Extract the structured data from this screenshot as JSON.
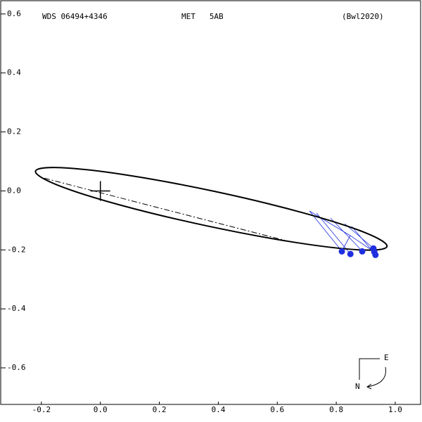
{
  "chart_data": {
    "type": "orbit",
    "title": "WDS 06494+4346",
    "subtitle": "MET   5AB",
    "reference": "(Bwl2020)",
    "compass_east": "E",
    "compass_north": "N",
    "xlim": [
      -0.338,
      1.086
    ],
    "ylim": [
      -0.724,
      0.645
    ],
    "xticks": [
      {
        "value": -0.2,
        "label": "-0.2"
      },
      {
        "value": 0,
        "label": "0.0"
      },
      0.2,
      0.4,
      0.6,
      0.8,
      {
        "value": 1,
        "label": "1.0"
      }
    ],
    "yticks": [
      {
        "value": 0.6,
        "label": "0.6"
      },
      {
        "value": 0.4,
        "label": "0.4"
      },
      {
        "value": 0.2,
        "label": "0.2"
      },
      {
        "value": 0,
        "label": "0.0"
      },
      {
        "value": -0.2,
        "label": "-0.2"
      },
      {
        "value": -0.4,
        "label": "-0.4"
      },
      {
        "value": -0.6,
        "label": "-0.6"
      }
    ],
    "orbit": {
      "color": "#000000",
      "x": [
        0.972,
        0.898,
        0.685,
        0.389,
        0.089,
        -0.134,
        -0.22,
        -0.146,
        0.067,
        0.363,
        0.663,
        0.886,
        0.972
      ],
      "y": [
        -0.188,
        -0.1415,
        -0.0736,
        -0.002,
        0.0538,
        0.0789,
        0.0666,
        0.0201,
        -0.0478,
        -0.119,
        -0.175,
        -0.2003,
        -0.188
      ]
    },
    "line_of_nodes": {
      "x": [
        -0.19,
        0.657
      ],
      "y": [
        0.043,
        -0.176
      ]
    },
    "observations": {
      "color": "#1f2fe0",
      "x": [
        0.819,
        0.848,
        0.888,
        0.926,
        0.933,
        0.929
      ],
      "y": [
        -0.205,
        -0.214,
        -0.205,
        -0.195,
        -0.217,
        -0.207
      ]
    }
  }
}
